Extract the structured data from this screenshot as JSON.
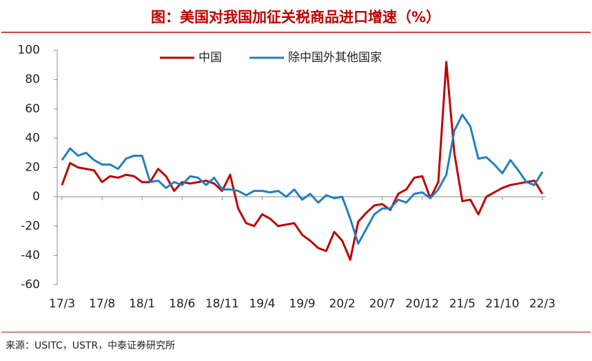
{
  "chart_data": {
    "type": "line",
    "title": "图：美国对我国加征关税商品进口增速（%）",
    "source": "来源：USITC，USTR，中泰证券研究所",
    "categories": [
      "17/3",
      null,
      null,
      null,
      null,
      "17/8",
      null,
      null,
      null,
      null,
      "18/1",
      null,
      null,
      null,
      null,
      "18/6",
      null,
      null,
      null,
      null,
      "18/11",
      null,
      null,
      null,
      null,
      "19/4",
      null,
      null,
      null,
      null,
      "19/9",
      null,
      null,
      null,
      null,
      "20/2",
      null,
      null,
      null,
      null,
      "20/7",
      null,
      null,
      null,
      null,
      "20/12",
      null,
      null,
      null,
      null,
      "21/5",
      null,
      null,
      null,
      null,
      "21/10",
      null,
      null,
      null,
      null,
      "22/3"
    ],
    "series": [
      {
        "name": "中国",
        "color": "#c00000",
        "values": [
          8,
          23,
          20,
          19,
          18,
          10,
          14,
          13,
          15,
          14,
          10,
          10,
          19,
          14,
          4,
          10,
          9,
          10,
          11,
          9,
          4,
          15,
          -8,
          -18,
          -20,
          -12,
          -15,
          -20,
          -19,
          -18,
          -26,
          -30,
          -35,
          -37,
          -24,
          -30,
          -43,
          -17,
          -11,
          -6,
          -5,
          -9,
          2,
          5,
          13,
          14,
          -1,
          10,
          92,
          30,
          -3,
          -2,
          -12,
          0,
          3,
          6,
          8,
          9,
          10,
          11,
          2
        ]
      },
      {
        "name": "除中国外其他国家",
        "color": "#1f7fc1",
        "values": [
          25,
          33,
          28,
          30,
          25,
          22,
          22,
          19,
          26,
          28,
          28,
          10,
          11,
          6,
          10,
          8,
          14,
          13,
          8,
          13,
          5,
          5,
          4,
          1,
          4,
          4,
          3,
          4,
          0,
          5,
          -2,
          2,
          -4,
          1,
          -1,
          0,
          -15,
          -32,
          -22,
          -12,
          -8,
          -8,
          -2,
          -4,
          2,
          3,
          -1,
          5,
          15,
          45,
          56,
          48,
          26,
          27,
          22,
          16,
          25,
          18,
          10,
          8,
          17
        ]
      }
    ],
    "ylim": [
      -60,
      100
    ],
    "yticks": [
      -60,
      -40,
      -20,
      0,
      20,
      40,
      60,
      80,
      100
    ],
    "grid": false
  }
}
